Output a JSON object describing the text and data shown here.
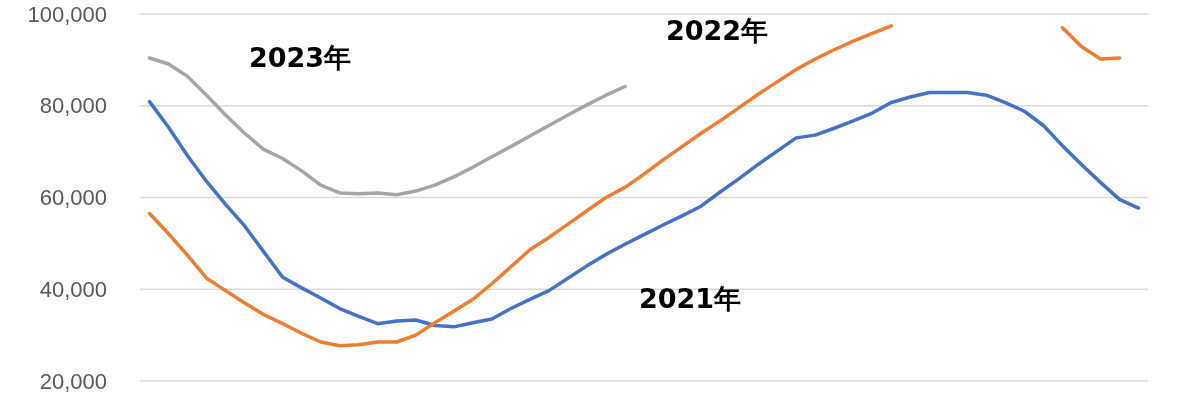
{
  "chart_data": {
    "type": "line",
    "categories": [
      null,
      null,
      null,
      null,
      null,
      null,
      null,
      null,
      null,
      null,
      null,
      null,
      null,
      null,
      null,
      null,
      null,
      null,
      null,
      null,
      null,
      null,
      null,
      null,
      null,
      null,
      null,
      null,
      null,
      null,
      null,
      null,
      null,
      null,
      null,
      null,
      null,
      null,
      null,
      null,
      null,
      null,
      null,
      null,
      null,
      null,
      null,
      null,
      null,
      null,
      null,
      null,
      null
    ],
    "series": [
      {
        "name": "2021年",
        "color": "#4472c4",
        "values": [
          80900,
          75300,
          69100,
          63500,
          58500,
          53800,
          48200,
          42600,
          40300,
          38100,
          35800,
          34100,
          32500,
          33100,
          33300,
          32100,
          31800,
          32700,
          33500,
          35800,
          37800,
          39700,
          42400,
          45100,
          47600,
          49800,
          51900,
          54000,
          56000,
          58100,
          61200,
          64100,
          67200,
          70100,
          73000,
          73600,
          75100,
          76700,
          78400,
          80700,
          81900,
          82900,
          82900,
          82900,
          82300,
          80700,
          78800,
          75700,
          71300,
          67200,
          63300,
          59600,
          57700
        ]
      },
      {
        "name": "2022年",
        "color": "#ed7d31",
        "values": [
          56500,
          52100,
          47400,
          42400,
          39700,
          37000,
          34500,
          32500,
          30400,
          28500,
          27700,
          27900,
          28500,
          28500,
          30000,
          32700,
          35200,
          37800,
          41200,
          44900,
          48600,
          51300,
          54200,
          57100,
          60000,
          62200,
          65100,
          68200,
          71100,
          74000,
          76700,
          79600,
          82500,
          85200,
          87900,
          90200,
          92200,
          94100,
          95800,
          97400,
          null,
          null,
          null,
          null,
          null,
          null,
          null,
          null,
          97000,
          92900,
          90200,
          90400,
          null
        ]
      },
      {
        "name": "2023年",
        "color": "#a5a5a5",
        "values": [
          90400,
          89100,
          86400,
          82300,
          78000,
          74000,
          70500,
          68500,
          65800,
          62700,
          61000,
          60800,
          61000,
          60600,
          61400,
          62700,
          64500,
          66600,
          68900,
          71100,
          73400,
          75700,
          78000,
          80200,
          82300,
          84200,
          null,
          null,
          null,
          null,
          null,
          null,
          null,
          null,
          null,
          null,
          null,
          null,
          null,
          null,
          null,
          null,
          null,
          null,
          null,
          null,
          null,
          null,
          null,
          null,
          null,
          null,
          null
        ]
      }
    ],
    "ylim": [
      20000,
      100000
    ],
    "yticks": [
      {
        "value": 20000,
        "label": "20,000"
      },
      {
        "value": 40000,
        "label": "40,000"
      },
      {
        "value": 60000,
        "label": "60,000"
      },
      {
        "value": 80000,
        "label": "80,000"
      },
      {
        "value": 100000,
        "label": "100,000"
      }
    ],
    "grid": "y",
    "legend": false,
    "tick_labels": "y",
    "marker": "none",
    "line_style": "solid"
  }
}
